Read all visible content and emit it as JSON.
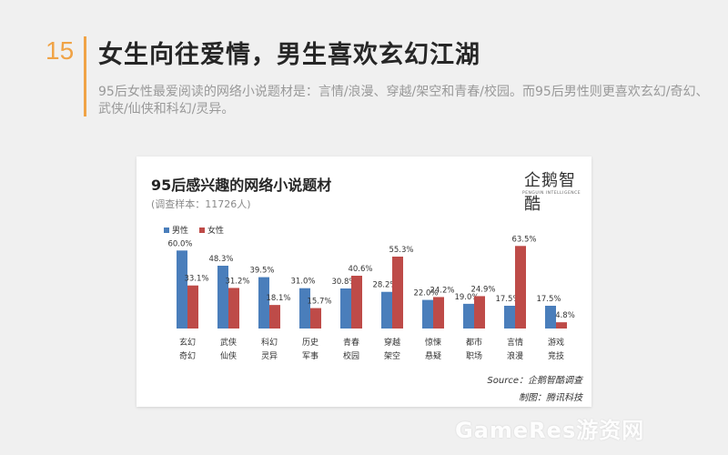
{
  "slide": {
    "number": "15",
    "title": "女生向往爱情，男生喜欢玄幻江湖",
    "subtitle": "95后女性最爱阅读的网络小说题材是：言情/浪漫、穿越/架空和青春/校园。而95后男性则更喜欢玄幻/奇幻、武侠/仙侠和科幻/灵异。"
  },
  "logo": {
    "text": "企鹅智酷",
    "sub": "PENGUIN INTELLIGENCE"
  },
  "watermark": "GameRes游资网",
  "colors": {
    "male": "#4a7ebb",
    "female": "#be4b48",
    "accent": "#f0a346"
  },
  "chart_data": {
    "type": "bar",
    "title": "95后感兴趣的网络小说题材",
    "sample_note": "(调查样本：11726人)",
    "categories": [
      [
        "玄幻",
        "奇幻"
      ],
      [
        "武侠",
        "仙侠"
      ],
      [
        "科幻",
        "灵异"
      ],
      [
        "历史",
        "军事"
      ],
      [
        "青春",
        "校园"
      ],
      [
        "穿越",
        "架空"
      ],
      [
        "惊悚",
        "悬疑"
      ],
      [
        "都市",
        "职场"
      ],
      [
        "言情",
        "浪漫"
      ],
      [
        "游戏",
        "竞技"
      ]
    ],
    "series": [
      {
        "name": "男性",
        "color": "#4a7ebb",
        "values": [
          60.0,
          48.3,
          39.5,
          31.0,
          30.8,
          28.2,
          22.0,
          19.0,
          17.5,
          17.5
        ]
      },
      {
        "name": "女性",
        "color": "#be4b48",
        "values": [
          33.1,
          31.2,
          18.1,
          15.7,
          40.6,
          55.3,
          24.2,
          24.9,
          63.5,
          4.8
        ]
      }
    ],
    "ylim": [
      0,
      70
    ],
    "grid": false,
    "legend": "top-left",
    "source": "Source：企鹅智酷调查",
    "credit": "制图：腾讯科技"
  }
}
